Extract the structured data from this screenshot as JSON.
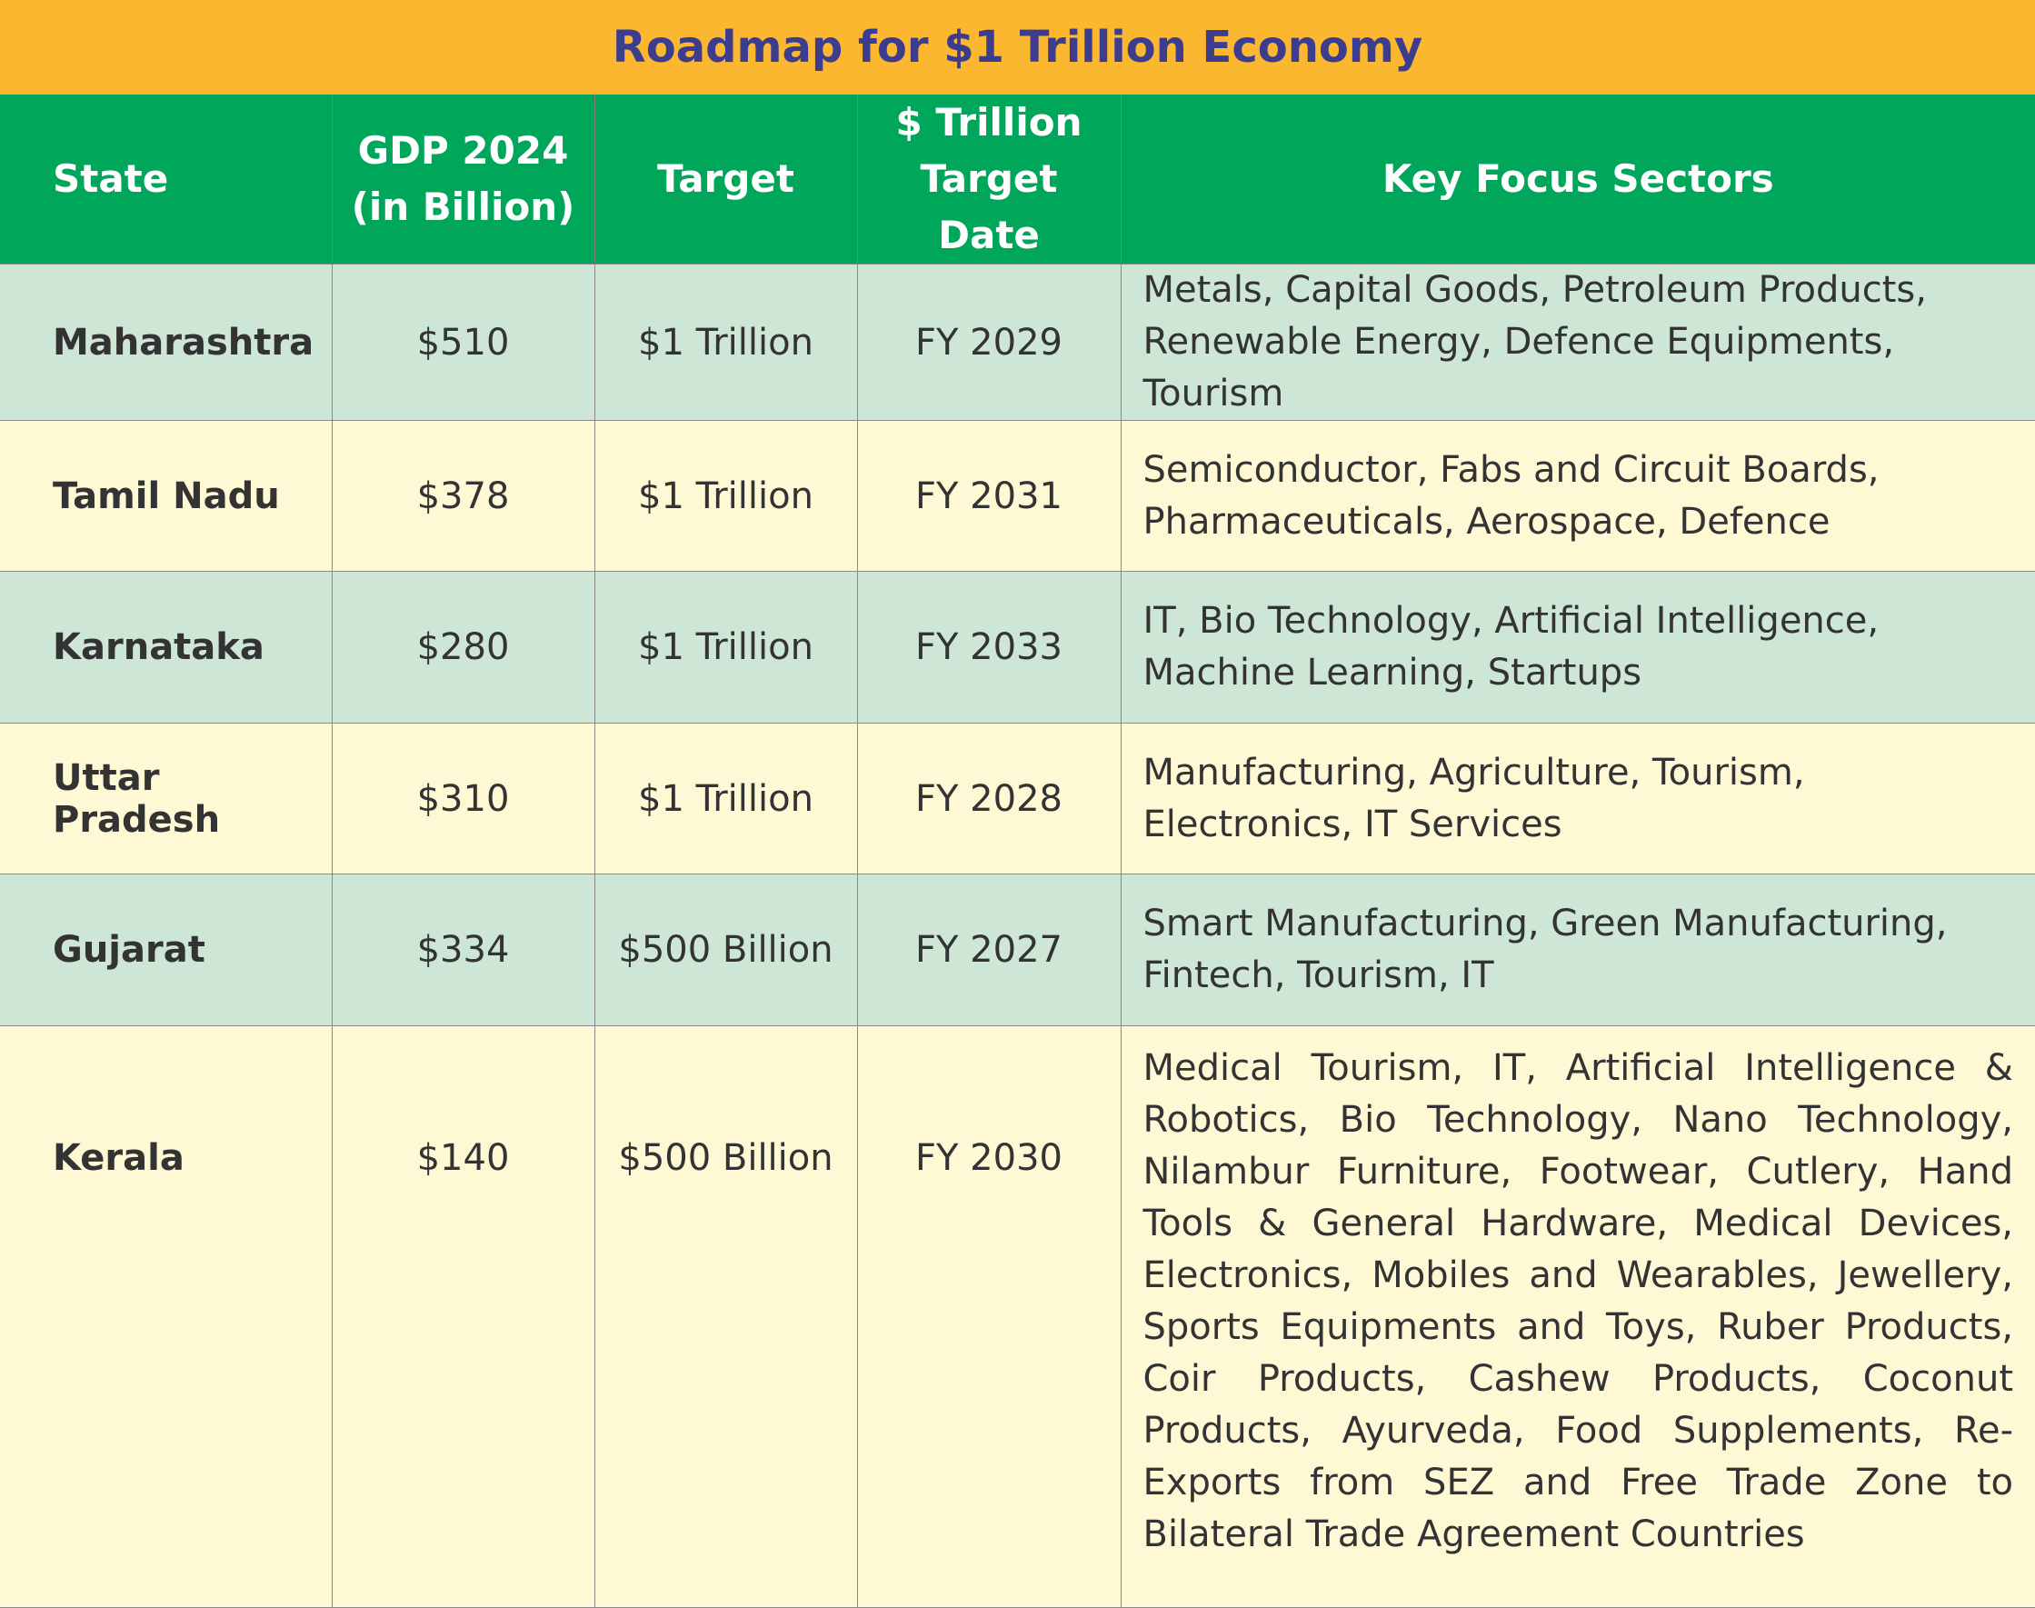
{
  "title": "Roadmap for $1 Trillion Economy",
  "colors": {
    "title_bg": "#fbb72f",
    "title_text": "#3d3d8f",
    "header_bg": "#00a65a",
    "row_green": "#cde6d5",
    "row_yellow": "#fef8d4"
  },
  "headers": {
    "state": "State",
    "gdp_line1": "GDP 2024",
    "gdp_line2": "(in Billion)",
    "target": "Target",
    "date_line1": "$ Trillion",
    "date_line2": "Target Date",
    "sectors": "Key Focus Sectors"
  },
  "rows": [
    {
      "state": "Maharashtra",
      "gdp": "$510",
      "target": "$1 Trillion",
      "date": "FY 2029",
      "sectors": "Metals, Capital Goods, Petroleum Products, Renewable Energy, Defence Equipments, Tourism"
    },
    {
      "state": "Tamil Nadu",
      "gdp": "$378",
      "target": "$1 Trillion",
      "date": "FY 2031",
      "sectors": "Semiconductor, Fabs and Circuit Boards, Pharmaceuticals, Aerospace, Defence"
    },
    {
      "state": "Karnataka",
      "gdp": "$280",
      "target": "$1 Trillion",
      "date": "FY 2033",
      "sectors": "IT, Bio Technology, Artificial Intelligence, Machine Learning, Startups"
    },
    {
      "state": "Uttar Pradesh",
      "gdp": "$310",
      "target": "$1 Trillion",
      "date": "FY 2028",
      "sectors": "Manufacturing, Agriculture, Tourism, Electronics, IT Services"
    },
    {
      "state": "Gujarat",
      "gdp": "$334",
      "target": "$500 Billion",
      "date": "FY 2027",
      "sectors": "Smart Manufacturing, Green Manufacturing, Fintech, Tourism, IT"
    },
    {
      "state": "Kerala",
      "gdp": "$140",
      "target": "$500 Billion",
      "date": "FY 2030",
      "sectors": "Medical Tourism, IT, Artificial Intelligence & Robotics, Bio Technology, Nano Technology, Nilambur Furniture, Footwear, Cutlery, Hand Tools & General Hardware, Medical Devices, Electronics, Mobiles and Wearables, Jewellery, Sports Equipments and Toys, Ruber Products, Coir Products, Cashew Products, Coconut Products, Ayurveda, Food Supplements, Re-Exports from SEZ and Free Trade Zone to Bilateral Trade Agreement Countries"
    }
  ]
}
